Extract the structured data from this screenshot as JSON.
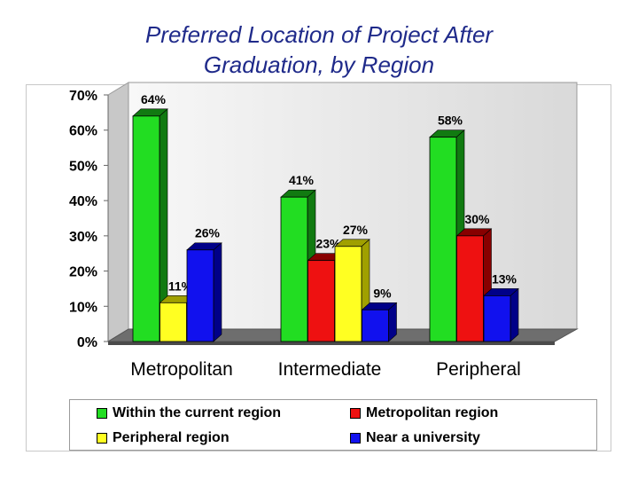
{
  "title_line1": "Preferred Location of Project After",
  "title_line2": "Graduation, by Region",
  "chart_data": {
    "type": "bar",
    "title": "Preferred Location of Project After Graduation, by Region",
    "categories": [
      "Metropolitan",
      "Intermediate",
      "Peripheral"
    ],
    "yticks": [
      "0%",
      "10%",
      "20%",
      "30%",
      "40%",
      "50%",
      "60%",
      "70%"
    ],
    "ylim": [
      0,
      70
    ],
    "series": [
      {
        "name": "Within the current region",
        "color": "#22dd22",
        "side": "#117a11",
        "values": [
          64,
          41,
          58
        ],
        "labels": [
          "64%",
          "41%",
          "58%"
        ]
      },
      {
        "name": "Metropolitan region",
        "color": "#ee1111",
        "side": "#880000",
        "values": [
          null,
          23,
          30
        ],
        "labels": [
          null,
          "23%",
          "30%"
        ]
      },
      {
        "name": "Peripheral region",
        "color": "#ffff22",
        "side": "#a0a000",
        "values": [
          11,
          27,
          null
        ],
        "labels": [
          "11%",
          "27%",
          null
        ]
      },
      {
        "name": "Near a university",
        "color": "#1111ee",
        "side": "#000088",
        "values": [
          26,
          9,
          13
        ],
        "labels": [
          "26%",
          "9%",
          "13%"
        ]
      }
    ],
    "legend_position": "bottom",
    "grid": false
  }
}
